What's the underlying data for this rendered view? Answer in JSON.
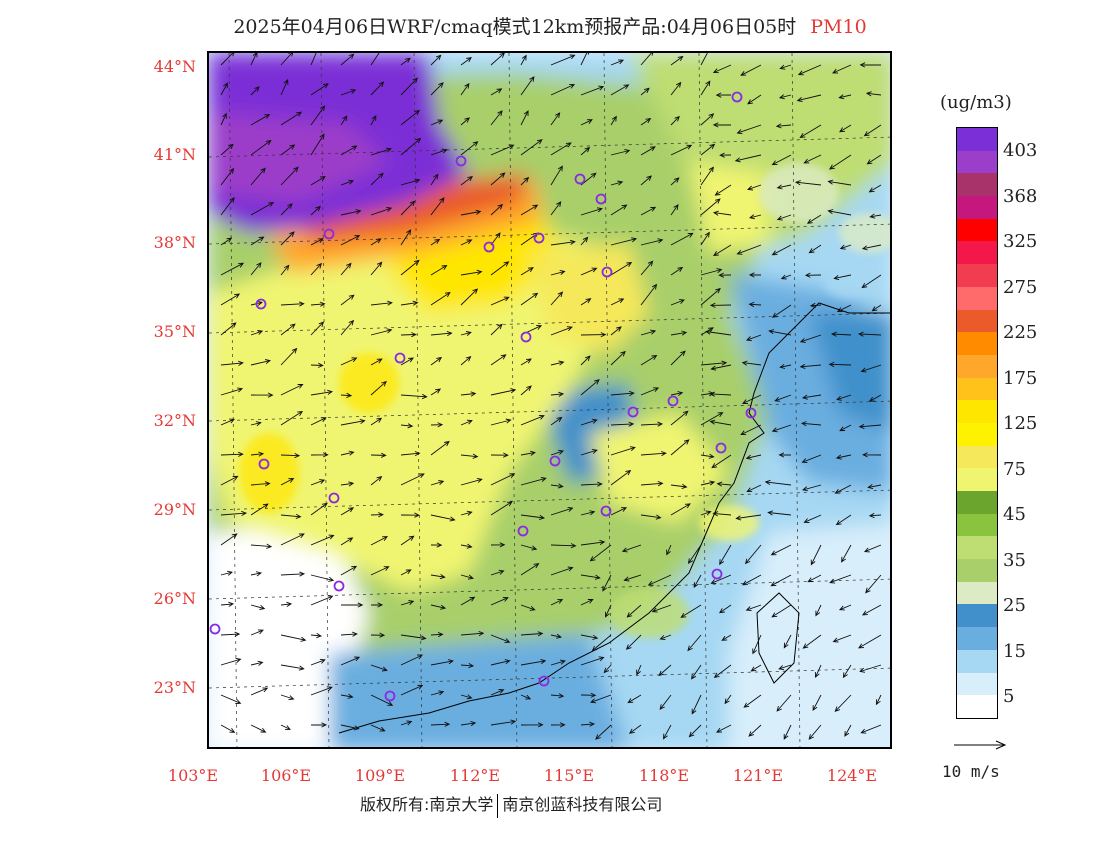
{
  "title": {
    "main": "2025年04月06日WRF/cmaq模式12km预报产品:04月06日05时",
    "variable": "PM10"
  },
  "map": {
    "lat_labels": [
      "44°N",
      "41°N",
      "38°N",
      "35°N",
      "32°N",
      "29°N",
      "26°N",
      "23°N"
    ],
    "lon_labels": [
      "103°E",
      "106°E",
      "109°E",
      "112°E",
      "115°E",
      "118°E",
      "121°E",
      "124°E"
    ],
    "extent": {
      "lon_min": 103,
      "lon_max": 124,
      "lat_min": 21,
      "lat_max": 44.5
    }
  },
  "legend": {
    "unit": "(ug/m3)",
    "labels": [
      "403",
      "368",
      "325",
      "275",
      "225",
      "175",
      "125",
      "75",
      "45",
      "35",
      "25",
      "15",
      "5"
    ],
    "colors": [
      "#7b2fd6",
      "#9b3ec9",
      "#a8326a",
      "#c6177e",
      "#ff0000",
      "#f3174a",
      "#f23c50",
      "#ff6b6b",
      "#ea5a2b",
      "#ff8c00",
      "#ffa72b",
      "#ffc21a",
      "#ffe600",
      "#fff200",
      "#f5e85a",
      "#f0f571",
      "#6ba52e",
      "#8ac43f",
      "#bedd72",
      "#a8cf6a",
      "#dcebc4",
      "#4190cb",
      "#6aaee0",
      "#a6d8f3",
      "#d8eefb",
      "#ffffff"
    ]
  },
  "wind_reference": "10 m/s",
  "copyright": {
    "left": "版权所有:南京大学",
    "right": "南京创蓝科技有限公司"
  }
}
